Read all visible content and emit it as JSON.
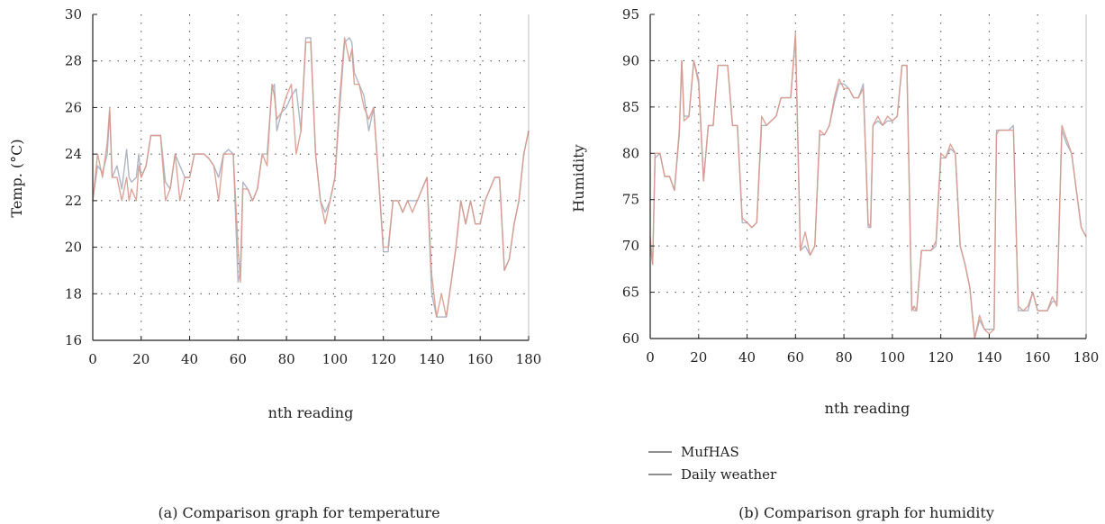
{
  "colors": {
    "mufhas": "#aeb6c4",
    "daily": "#d99a8e",
    "axis": "#222222",
    "grid": "#333333"
  },
  "chart_data": [
    {
      "type": "line",
      "caption": "(a) Comparison graph for temperature",
      "xlabel": "nth reading",
      "ylabel": "Temp. (°C)",
      "xlim": [
        0,
        180
      ],
      "ylim": [
        16,
        30
      ],
      "xticks": [
        0,
        20,
        40,
        60,
        80,
        100,
        120,
        140,
        160,
        180
      ],
      "yticks": [
        16,
        18,
        20,
        22,
        24,
        26,
        28,
        30
      ],
      "grid": true,
      "series": [
        {
          "name": "MufHAS",
          "x": [
            0,
            2,
            4,
            6,
            7,
            8,
            10,
            12,
            14,
            15,
            16,
            18,
            19,
            20,
            22,
            24,
            26,
            28,
            30,
            32,
            34,
            36,
            38,
            40,
            42,
            44,
            46,
            48,
            50,
            52,
            54,
            56,
            58,
            60,
            61,
            62,
            64,
            66,
            68,
            70,
            72,
            74,
            75,
            76,
            78,
            80,
            82,
            84,
            86,
            88,
            90,
            92,
            94,
            96,
            98,
            100,
            102,
            104,
            106,
            107,
            108,
            110,
            112,
            114,
            116,
            118,
            120,
            122,
            124,
            126,
            128,
            130,
            132,
            134,
            136,
            138,
            140,
            142,
            144,
            146,
            148,
            150,
            152,
            154,
            156,
            158,
            160,
            162,
            164,
            166,
            168,
            170,
            172,
            174,
            176,
            178,
            180
          ],
          "y": [
            22.0,
            23.5,
            23.2,
            24.0,
            25.8,
            23.0,
            23.5,
            22.5,
            24.2,
            23.0,
            22.8,
            23.0,
            24.0,
            23.0,
            23.5,
            24.8,
            24.8,
            24.8,
            22.8,
            22.5,
            24.0,
            23.5,
            23.0,
            23.0,
            24.0,
            24.0,
            24.0,
            23.8,
            23.5,
            23.0,
            24.0,
            24.2,
            24.0,
            18.5,
            19.0,
            22.8,
            22.5,
            22.0,
            22.5,
            24.0,
            24.0,
            26.8,
            27.0,
            25.0,
            25.8,
            26.0,
            26.5,
            26.8,
            25.0,
            29.0,
            29.0,
            24.0,
            22.0,
            21.5,
            22.0,
            23.0,
            26.0,
            28.8,
            29.0,
            28.8,
            27.5,
            27.0,
            26.5,
            25.0,
            26.0,
            23.0,
            19.8,
            19.8,
            22.0,
            22.0,
            21.5,
            22.0,
            22.0,
            22.0,
            22.5,
            23.0,
            18.0,
            17.0,
            17.0,
            17.0,
            18.5,
            20.0,
            22.0,
            21.0,
            22.0,
            21.0,
            21.0,
            22.0,
            22.5,
            23.0,
            23.0,
            19.0,
            19.5,
            21.0,
            22.0,
            24.0,
            25.0
          ]
        },
        {
          "name": "Daily weather",
          "x": [
            0,
            2,
            4,
            6,
            7,
            8,
            10,
            12,
            14,
            15,
            16,
            18,
            19,
            20,
            22,
            24,
            26,
            28,
            30,
            32,
            34,
            36,
            38,
            40,
            42,
            44,
            46,
            48,
            50,
            52,
            54,
            56,
            58,
            60,
            61,
            62,
            64,
            66,
            68,
            70,
            72,
            74,
            75,
            76,
            78,
            80,
            82,
            84,
            86,
            88,
            90,
            92,
            94,
            96,
            98,
            100,
            102,
            104,
            106,
            107,
            108,
            110,
            112,
            114,
            116,
            118,
            120,
            122,
            124,
            126,
            128,
            130,
            132,
            134,
            136,
            138,
            140,
            142,
            144,
            146,
            148,
            150,
            152,
            154,
            156,
            158,
            160,
            162,
            164,
            166,
            168,
            170,
            172,
            174,
            176,
            178,
            180
          ],
          "y": [
            22.0,
            24.0,
            23.0,
            24.5,
            26.0,
            23.0,
            23.0,
            22.0,
            23.0,
            22.0,
            22.5,
            22.0,
            23.5,
            23.0,
            23.5,
            24.8,
            24.8,
            24.8,
            22.0,
            22.5,
            24.0,
            22.0,
            23.0,
            23.0,
            24.0,
            24.0,
            24.0,
            23.8,
            23.5,
            22.0,
            24.0,
            24.0,
            24.0,
            20.0,
            18.5,
            22.5,
            22.5,
            22.0,
            22.5,
            24.0,
            23.5,
            27.0,
            26.5,
            25.5,
            25.8,
            26.5,
            27.0,
            24.0,
            25.0,
            28.8,
            28.8,
            24.0,
            22.0,
            21.0,
            22.0,
            23.0,
            26.5,
            29.0,
            28.0,
            28.5,
            27.0,
            27.0,
            26.0,
            25.5,
            26.0,
            23.0,
            20.0,
            20.0,
            22.0,
            22.0,
            21.5,
            22.0,
            21.5,
            22.0,
            22.5,
            23.0,
            18.8,
            17.0,
            18.0,
            17.0,
            18.5,
            20.0,
            22.0,
            21.0,
            22.0,
            21.0,
            21.0,
            22.0,
            22.5,
            23.0,
            23.0,
            19.0,
            19.5,
            21.0,
            22.0,
            24.0,
            25.0
          ]
        }
      ]
    },
    {
      "type": "line",
      "caption": "(b) Comparison graph for humidity",
      "xlabel": "nth reading",
      "ylabel": "Humidity",
      "xlim": [
        0,
        180
      ],
      "ylim": [
        60,
        95
      ],
      "xticks": [
        0,
        20,
        40,
        60,
        80,
        100,
        120,
        140,
        160,
        180
      ],
      "yticks": [
        60,
        65,
        70,
        75,
        80,
        85,
        90,
        95
      ],
      "grid": true,
      "legend": "below",
      "series": [
        {
          "name": "MufHAS",
          "x": [
            0,
            1,
            2,
            4,
            6,
            8,
            10,
            12,
            13,
            14,
            16,
            18,
            20,
            22,
            24,
            26,
            28,
            30,
            32,
            34,
            36,
            38,
            40,
            42,
            44,
            46,
            48,
            50,
            52,
            54,
            56,
            58,
            60,
            62,
            64,
            66,
            68,
            70,
            72,
            74,
            76,
            78,
            80,
            82,
            84,
            86,
            88,
            90,
            91,
            92,
            94,
            96,
            98,
            100,
            102,
            104,
            106,
            108,
            109,
            110,
            112,
            114,
            116,
            118,
            120,
            122,
            124,
            126,
            128,
            130,
            132,
            134,
            136,
            138,
            140,
            142,
            143,
            144,
            146,
            148,
            150,
            152,
            154,
            156,
            158,
            160,
            162,
            164,
            166,
            168,
            170,
            172,
            174,
            176,
            178,
            180
          ],
          "y": [
            70.0,
            68.0,
            79.5,
            80.0,
            77.5,
            77.5,
            76.0,
            82.0,
            90.0,
            84.0,
            84.0,
            90.0,
            88.0,
            77.0,
            83.0,
            83.0,
            89.5,
            89.5,
            89.5,
            83.0,
            83.0,
            72.5,
            72.5,
            72.0,
            72.5,
            83.0,
            83.0,
            83.5,
            84.0,
            86.0,
            86.0,
            86.0,
            92.5,
            69.5,
            70.0,
            69.0,
            70.0,
            82.0,
            82.0,
            83.0,
            85.5,
            87.5,
            87.5,
            87.0,
            86.0,
            86.0,
            87.5,
            72.0,
            72.0,
            83.0,
            83.5,
            83.0,
            83.5,
            83.5,
            84.0,
            89.5,
            89.5,
            63.5,
            63.0,
            63.0,
            69.5,
            69.5,
            69.5,
            70.0,
            79.5,
            79.5,
            80.5,
            80.0,
            70.0,
            68.0,
            65.5,
            60.0,
            62.0,
            61.0,
            61.0,
            61.0,
            82.5,
            82.5,
            82.5,
            82.5,
            83.0,
            63.0,
            63.0,
            63.0,
            65.0,
            63.0,
            63.0,
            63.0,
            64.0,
            64.0,
            82.5,
            81.0,
            80.0,
            76.0,
            72.0,
            71.0
          ]
        },
        {
          "name": "Daily weather",
          "x": [
            0,
            1,
            2,
            4,
            6,
            8,
            10,
            12,
            13,
            14,
            16,
            18,
            20,
            22,
            24,
            26,
            28,
            30,
            32,
            34,
            36,
            38,
            40,
            42,
            44,
            46,
            48,
            50,
            52,
            54,
            56,
            58,
            60,
            62,
            64,
            66,
            68,
            70,
            72,
            74,
            76,
            78,
            80,
            82,
            84,
            86,
            88,
            90,
            91,
            92,
            94,
            96,
            98,
            100,
            102,
            104,
            106,
            108,
            109,
            110,
            112,
            114,
            116,
            118,
            120,
            122,
            124,
            126,
            128,
            130,
            132,
            134,
            136,
            138,
            140,
            142,
            143,
            144,
            146,
            148,
            150,
            152,
            154,
            156,
            158,
            160,
            162,
            164,
            166,
            168,
            170,
            172,
            174,
            176,
            178,
            180
          ],
          "y": [
            71.0,
            68.0,
            80.0,
            80.0,
            77.5,
            77.5,
            76.0,
            82.5,
            90.0,
            83.5,
            84.0,
            90.0,
            87.5,
            77.0,
            83.0,
            83.0,
            89.5,
            89.5,
            89.5,
            83.0,
            83.0,
            73.0,
            72.5,
            72.0,
            72.5,
            84.0,
            83.0,
            83.5,
            84.0,
            86.0,
            86.0,
            86.0,
            93.0,
            69.5,
            71.5,
            69.0,
            70.0,
            82.5,
            82.0,
            83.0,
            86.0,
            88.0,
            87.0,
            87.0,
            86.0,
            86.0,
            87.0,
            72.5,
            72.0,
            83.0,
            84.0,
            83.0,
            84.0,
            83.5,
            84.0,
            89.5,
            89.5,
            63.0,
            63.5,
            63.0,
            69.5,
            69.5,
            69.5,
            70.5,
            80.0,
            79.5,
            81.0,
            80.0,
            70.0,
            68.0,
            65.5,
            60.0,
            62.5,
            61.0,
            60.5,
            61.0,
            82.0,
            82.5,
            82.5,
            82.5,
            82.5,
            63.5,
            63.0,
            63.5,
            65.0,
            63.0,
            63.0,
            63.0,
            64.5,
            63.5,
            83.0,
            81.5,
            80.0,
            76.0,
            72.0,
            71.0
          ]
        }
      ]
    }
  ]
}
